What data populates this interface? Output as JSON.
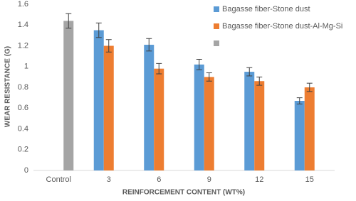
{
  "chart_data": {
    "type": "bar",
    "x_label": "REINFORCEMENT CONTENT (WT%)",
    "y_label": "WEAR RESISTANCE (G)",
    "categories": [
      "Control",
      "3",
      "6",
      "9",
      "12",
      "15"
    ],
    "series": [
      {
        "name": "Bagasse fiber-Stone dust",
        "color": "#5b9bd5",
        "values": [
          null,
          1.35,
          1.21,
          1.02,
          0.95,
          0.67
        ],
        "errors": [
          null,
          0.07,
          0.06,
          0.05,
          0.04,
          0.03
        ]
      },
      {
        "name": "Bagasse fiber-Stone dust-Al-Mg-Si",
        "color": "#ed7d31",
        "values": [
          null,
          1.2,
          0.98,
          0.9,
          0.86,
          0.8
        ],
        "errors": [
          null,
          0.06,
          0.05,
          0.04,
          0.04,
          0.04
        ]
      },
      {
        "color": "#a5a5a5",
        "values": [
          1.44,
          null,
          null,
          null,
          null,
          null
        ],
        "errors": [
          0.07,
          null,
          null,
          null,
          null,
          null
        ]
      }
    ],
    "ylim": [
      0,
      1.6
    ],
    "yticks": [
      0,
      0.2,
      0.4,
      0.6,
      0.8,
      1,
      1.2,
      1.4,
      1.6
    ],
    "legend": "upper right",
    "grid": false
  }
}
